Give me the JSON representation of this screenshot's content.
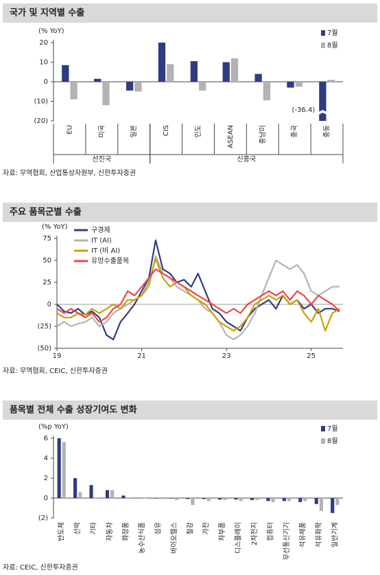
{
  "chart_data": [
    {
      "type": "bar",
      "title": "국가 및 지역별 수출",
      "y_label": "(% YoY)",
      "categories": [
        "EU",
        "미국",
        "일본",
        "CIS",
        "인도",
        "ASEAN",
        "중남미",
        "중국",
        "중동"
      ],
      "groups": [
        {
          "name": "선진국",
          "size": 3
        },
        {
          "name": "신흥국",
          "size": 6
        }
      ],
      "series": [
        {
          "name": "7월",
          "color": "#2f3c80",
          "values": [
            8.5,
            1.5,
            -4.5,
            20,
            10.5,
            10,
            4,
            -3,
            -36.4
          ],
          "value_labels": [
            null,
            null,
            null,
            null,
            null,
            null,
            null,
            null,
            "(-36.4)"
          ]
        },
        {
          "name": "8월",
          "color": "#b3b3b3",
          "values": [
            -9,
            -12,
            -5,
            9,
            -4.5,
            12,
            -9.5,
            -2.5,
            1
          ]
        }
      ],
      "ylim": [
        -20,
        20
      ],
      "yticks": [
        20,
        10,
        0,
        {
          "value": -10,
          "label": "(10)"
        },
        {
          "value": -20,
          "label": "(20)"
        }
      ],
      "source": "자료: 무역협회, 산업통상자원부, 신한투자증권"
    },
    {
      "type": "line",
      "title": "주요 품목군별 수출",
      "y_label": "(% YoY)",
      "x": [
        19,
        19.17,
        19.33,
        19.5,
        19.67,
        19.83,
        20,
        20.17,
        20.33,
        20.5,
        20.67,
        20.83,
        21,
        21.17,
        21.33,
        21.5,
        21.67,
        21.83,
        22,
        22.17,
        22.33,
        22.5,
        22.67,
        22.83,
        23,
        23.17,
        23.33,
        23.5,
        23.67,
        23.83,
        24,
        24.17,
        24.33,
        24.5,
        24.67,
        24.83,
        25,
        25.17,
        25.33,
        25.5,
        25.67
      ],
      "series": [
        {
          "name": "구경제",
          "color": "#2f3c80",
          "values": [
            0,
            -8,
            -10,
            -5,
            -12,
            -8,
            -15,
            -35,
            -40,
            -20,
            -10,
            0,
            15,
            30,
            73,
            40,
            35,
            25,
            28,
            20,
            35,
            15,
            -5,
            -10,
            -20,
            -25,
            -30,
            -15,
            -5,
            0,
            5,
            -5,
            10,
            0,
            5,
            -5,
            0,
            -10,
            -5,
            -5,
            -8
          ]
        },
        {
          "name": "IT (AI)",
          "color": "#b3b3b3",
          "values": [
            -25,
            -20,
            -25,
            -22,
            -20,
            -15,
            -25,
            -20,
            -10,
            -5,
            0,
            5,
            10,
            20,
            55,
            35,
            30,
            20,
            15,
            10,
            5,
            -5,
            -10,
            -20,
            -35,
            -40,
            -35,
            -25,
            -10,
            10,
            30,
            50,
            45,
            40,
            45,
            35,
            15,
            10,
            15,
            20,
            20
          ]
        },
        {
          "name": "IT (비 AI)",
          "color": "#c9a000",
          "values": [
            -10,
            -15,
            -15,
            -10,
            -12,
            -5,
            -10,
            -5,
            0,
            -5,
            5,
            5,
            10,
            25,
            52,
            30,
            20,
            25,
            20,
            10,
            5,
            0,
            -10,
            -20,
            -25,
            -30,
            -25,
            -15,
            0,
            5,
            10,
            5,
            10,
            0,
            5,
            -10,
            -20,
            -5,
            -30,
            -10,
            -5
          ]
        },
        {
          "name": "유망수출품목",
          "color": "#f04545",
          "values": [
            -5,
            -10,
            -5,
            -10,
            -15,
            -10,
            -20,
            -15,
            -5,
            0,
            15,
            10,
            20,
            30,
            40,
            35,
            30,
            25,
            20,
            15,
            10,
            5,
            0,
            -5,
            -10,
            -5,
            -10,
            0,
            5,
            10,
            15,
            10,
            15,
            5,
            15,
            10,
            0,
            10,
            5,
            0,
            -8
          ]
        }
      ],
      "xlim": [
        19,
        25.75
      ],
      "xticks": [
        19,
        21,
        23,
        25
      ],
      "ylim": [
        -50,
        75
      ],
      "yticks": [
        75,
        50,
        25,
        0,
        {
          "value": -25,
          "label": "(25)"
        },
        {
          "value": -50,
          "label": "(50)"
        }
      ],
      "source": "자료: 무역협회, CEIC, 신한투자증권"
    },
    {
      "type": "bar",
      "title": "품목별 전체 수출 성장기여도 변화",
      "y_label": "(%p YoY)",
      "categories": [
        "반도체",
        "선박",
        "기타",
        "자동차",
        "화장품",
        "농수산식품",
        "섬유",
        "바이오헬스",
        "철강",
        "가전",
        "차부품",
        "디스플레이",
        "2차전지",
        "컴퓨터",
        "무선통신기기",
        "석유제품",
        "석유화학",
        "일반기계"
      ],
      "series": [
        {
          "name": "7월",
          "color": "#2f3c80",
          "values": [
            6.0,
            2.0,
            1.3,
            0.8,
            0.25,
            0.0,
            -0.05,
            -0.05,
            -0.1,
            -0.1,
            -0.15,
            -0.15,
            -0.2,
            -0.3,
            -0.3,
            -0.4,
            -0.6,
            -1.5
          ]
        },
        {
          "name": "8월",
          "color": "#b3b3b3",
          "values": [
            5.6,
            0.6,
            0.05,
            0.8,
            0.05,
            -0.05,
            -0.1,
            -0.2,
            -0.7,
            -0.3,
            -0.2,
            -0.3,
            -0.2,
            -0.4,
            -0.3,
            -0.3,
            -1.3,
            -0.7
          ]
        }
      ],
      "ylim": [
        -2,
        6
      ],
      "yticks": [
        6,
        4,
        2,
        0,
        {
          "value": -2,
          "label": "(2)"
        }
      ],
      "source": "자료: CEIC, 신한투자증권"
    }
  ]
}
